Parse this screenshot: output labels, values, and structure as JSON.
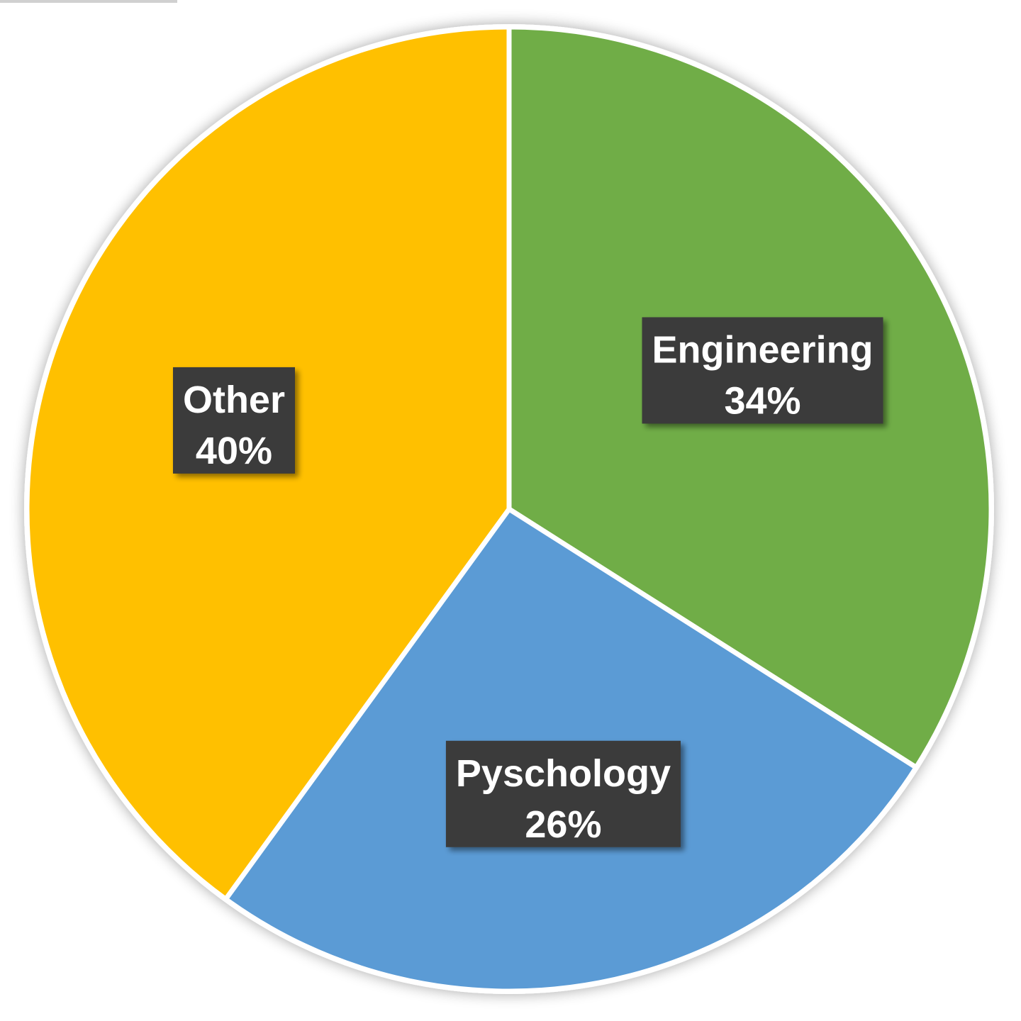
{
  "chart_data": {
    "type": "pie",
    "start": "top",
    "direction": "clockwise",
    "slices": [
      {
        "label": "Engineering",
        "percent_text": "34%",
        "value": 34,
        "color": "#70ad47"
      },
      {
        "label": "Pyschology",
        "percent_text": "26%",
        "value": 26,
        "color": "#5b9bd5"
      },
      {
        "label": "Other",
        "percent_text": "40%",
        "value": 40,
        "color": "#ffc000"
      }
    ],
    "label_box_color": "#3a3a3a",
    "label_text_color": "#ffffff",
    "slice_border_color": "#ffffff",
    "legend": "none"
  }
}
